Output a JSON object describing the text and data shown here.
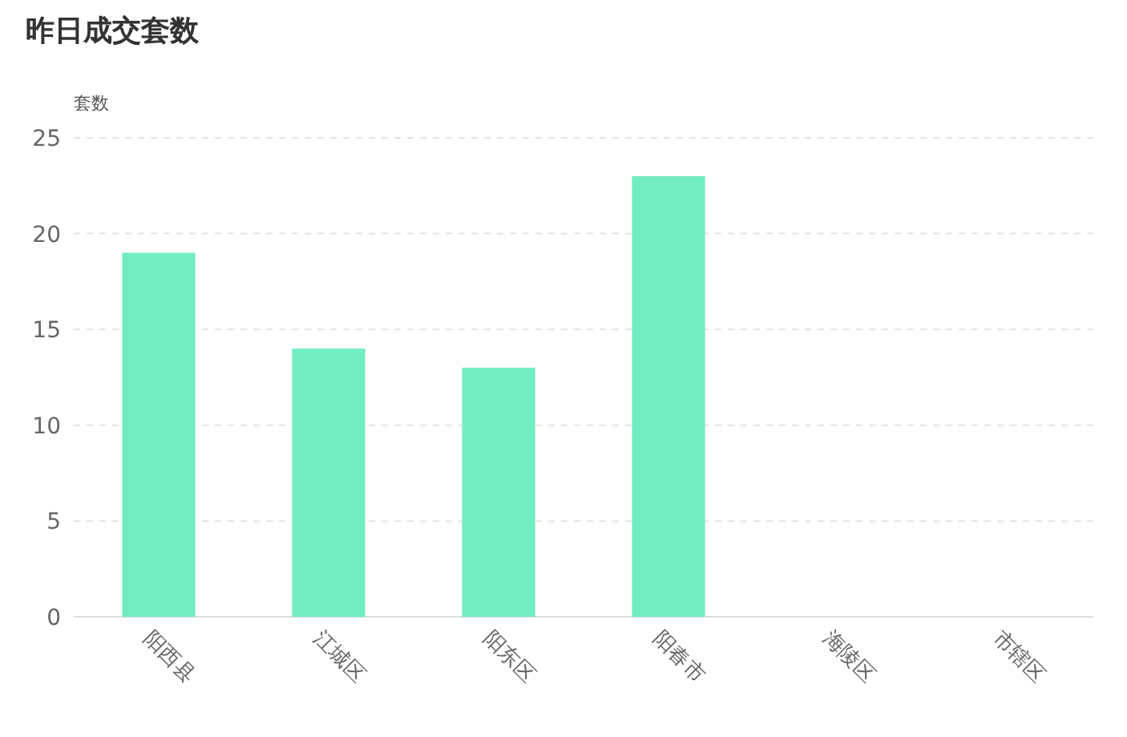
{
  "chart_data": {
    "type": "bar",
    "title": "昨日成交套数",
    "ylabel": "套数",
    "categories": [
      "阳西县",
      "江城区",
      "阳东区",
      "阳春市",
      "海陵区",
      "市辖区"
    ],
    "values": [
      19,
      14,
      13,
      23,
      0,
      0
    ],
    "color": "#72edbf",
    "ylim": [
      0,
      25
    ],
    "yticks": [
      0,
      5,
      10,
      15,
      20,
      25
    ],
    "grid": "y"
  }
}
